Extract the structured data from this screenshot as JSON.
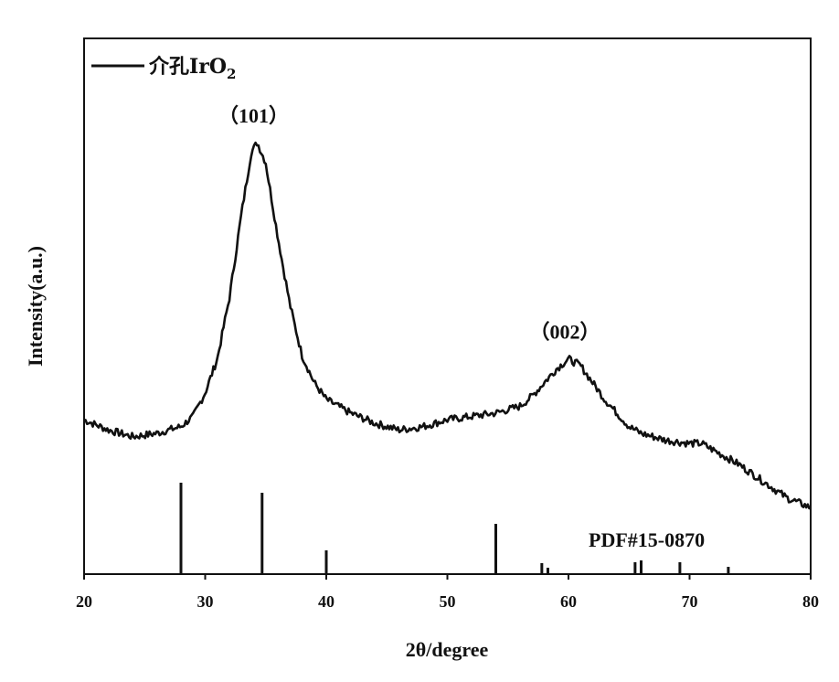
{
  "chart_data": {
    "type": "line",
    "xlabel": "2θ/degree",
    "ylabel": "Intensity(a.u.)",
    "xlim": [
      20,
      80
    ],
    "x_ticks": [
      20,
      30,
      40,
      50,
      60,
      70,
      80
    ],
    "legend": {
      "position": "top-left",
      "entries": [
        {
          "base": "介孔IrO",
          "sub": "2"
        }
      ]
    },
    "series": [
      {
        "name": "介孔IrO2",
        "color": "#111111",
        "x": [
          20,
          22,
          24,
          26,
          28,
          29,
          30,
          31,
          32,
          33,
          33.8,
          34.3,
          35,
          36,
          37,
          38,
          39,
          40,
          42,
          44,
          46,
          48,
          50,
          52,
          54,
          56,
          57,
          58,
          59,
          60,
          61,
          62,
          63,
          64,
          65,
          66,
          68,
          70,
          71,
          72,
          74,
          76,
          78,
          80
        ],
        "y": [
          0.34,
          0.31,
          0.29,
          0.3,
          0.32,
          0.35,
          0.42,
          0.52,
          0.7,
          0.95,
          1.13,
          1.16,
          1.1,
          0.88,
          0.68,
          0.53,
          0.45,
          0.4,
          0.36,
          0.33,
          0.31,
          0.32,
          0.34,
          0.35,
          0.36,
          0.38,
          0.41,
          0.45,
          0.49,
          0.52,
          0.5,
          0.45,
          0.4,
          0.36,
          0.32,
          0.3,
          0.28,
          0.27,
          0.27,
          0.25,
          0.21,
          0.16,
          0.11,
          0.08
        ]
      }
    ],
    "reference": {
      "label": "PDF#15-0870",
      "x": [
        28.0,
        34.7,
        40.0,
        54.0,
        57.8,
        58.3,
        65.5,
        66.0,
        69.2,
        73.2
      ],
      "intensity": [
        100,
        89,
        26,
        55,
        12,
        7,
        13,
        15,
        13,
        8
      ]
    },
    "annotations": [
      {
        "text": "（101）",
        "x": 34.3
      },
      {
        "text": "（002）",
        "x": 60.0
      }
    ]
  }
}
